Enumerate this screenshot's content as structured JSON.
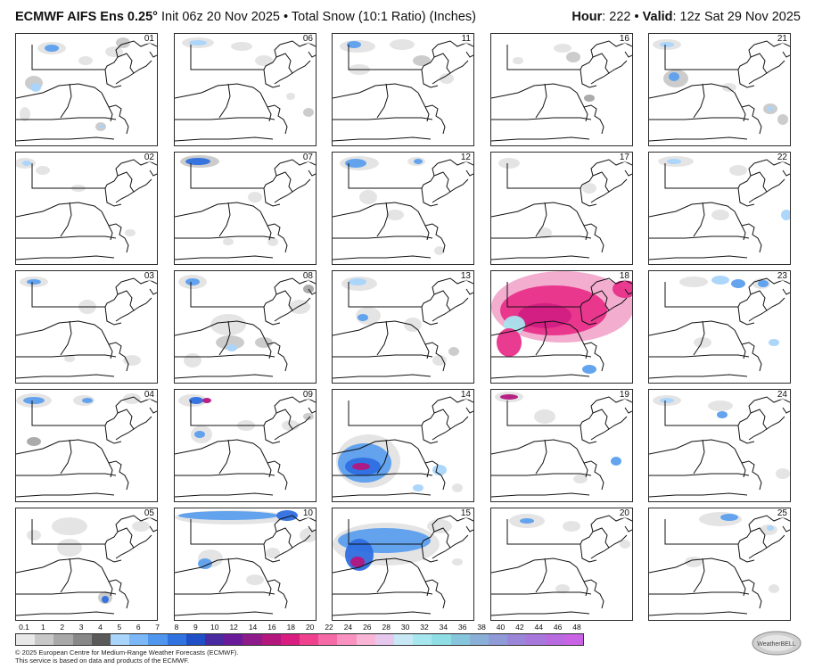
{
  "header": {
    "model": "ECMWF AIFS Ens 0.25°",
    "init": " Init 06z 20 Nov 2025",
    "sep": " • ",
    "product": "Total Snow (10:1 Ratio) (Inches)",
    "hour_label": "Hour",
    "hour_value": ": 222 • ",
    "valid_label": "Valid",
    "valid_value": ": 12z Sat 29 Nov 2025"
  },
  "members": [
    "01",
    "06",
    "11",
    "16",
    "21",
    "02",
    "07",
    "12",
    "17",
    "22",
    "03",
    "08",
    "13",
    "18",
    "23",
    "04",
    "09",
    "14",
    "19",
    "24",
    "05",
    "10",
    "15",
    "20",
    "25"
  ],
  "colorbar": {
    "labels": [
      "0.1",
      "1",
      "2",
      "3",
      "4",
      "5",
      "6",
      "7",
      "8",
      "9",
      "10",
      "12",
      "14",
      "16",
      "18",
      "20",
      "22",
      "24",
      "26",
      "28",
      "30",
      "32",
      "34",
      "36",
      "38",
      "40",
      "42",
      "44",
      "46",
      "48"
    ],
    "colors": [
      "#e8e8e8",
      "#c8c8c8",
      "#a8a8a8",
      "#888888",
      "#5a5a5a",
      "#a9d4fb",
      "#7cb8f7",
      "#4f96ee",
      "#2f72e0",
      "#1e4fc7",
      "#4a2aa0",
      "#6a1b9a",
      "#8e1b8a",
      "#b3177e",
      "#d91c7f",
      "#f0418e",
      "#f76aa8",
      "#f992c1",
      "#f8b5d6",
      "#e6c8ee",
      "#c7e8f4",
      "#a6e6ee",
      "#8fdde5",
      "#86c6dc",
      "#8ab0d8",
      "#8f9ad8",
      "#9a86d8",
      "#a877dc",
      "#b86ae0",
      "#c863e6"
    ]
  },
  "footer": {
    "line1": "© 2025 European Centre for Medium-Range Weather Forecasts (ECMWF).",
    "line2": "This service is based on data and products of the ECMWF."
  },
  "logo": {
    "text": "WeatherBELL"
  }
}
